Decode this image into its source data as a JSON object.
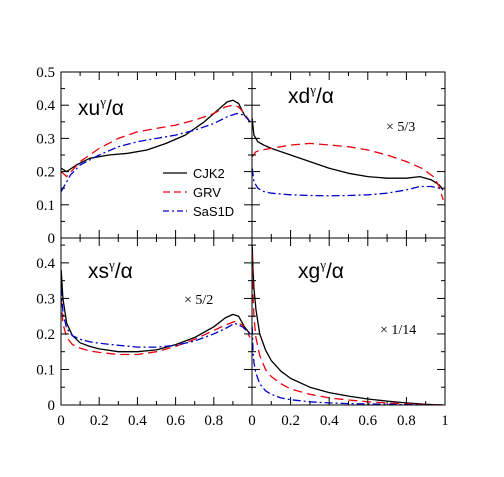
{
  "chart_data": {
    "type": "line",
    "x_axis": {
      "range": [
        0,
        1
      ],
      "ticks": [
        "0",
        "0.2",
        "0.4",
        "0.6",
        "0.8",
        "1"
      ]
    },
    "legend": {
      "placement": "inside top-left panel, lower-middle",
      "entries": [
        {
          "name": "CJK2",
          "color": "#000000",
          "dash": "solid"
        },
        {
          "name": "GRV",
          "color": "#e8000b",
          "dash": "dashed"
        },
        {
          "name": "SaS1D",
          "color": "#0000cc",
          "dash": "dash-dot"
        }
      ]
    },
    "panels": [
      {
        "id": "xu",
        "label": {
          "main": "xu",
          "sup": "γ",
          "tail": "/α"
        },
        "scale_note": "",
        "ylim": [
          0,
          0.5
        ],
        "y_ticks": [
          "0",
          "0.1",
          "0.2",
          "0.3",
          "0.4",
          "0.5"
        ],
        "series": [
          {
            "name": "CJK2",
            "x": [
              0.001,
              0.03,
              0.08,
              0.15,
              0.25,
              0.35,
              0.45,
              0.55,
              0.65,
              0.75,
              0.82,
              0.87,
              0.9,
              0.93,
              0.96,
              0.99
            ],
            "y": [
              0.21,
              0.2,
              0.22,
              0.24,
              0.25,
              0.255,
              0.265,
              0.285,
              0.31,
              0.35,
              0.385,
              0.41,
              0.415,
              0.405,
              0.37,
              0.35
            ]
          },
          {
            "name": "GRV",
            "x": [
              0.001,
              0.03,
              0.1,
              0.2,
              0.3,
              0.4,
              0.5,
              0.6,
              0.7,
              0.8,
              0.86,
              0.9,
              0.93,
              0.96,
              0.99
            ],
            "y": [
              0.2,
              0.185,
              0.23,
              0.27,
              0.3,
              0.32,
              0.33,
              0.34,
              0.355,
              0.375,
              0.395,
              0.4,
              0.395,
              0.375,
              0.35
            ]
          },
          {
            "name": "SaS1D",
            "x": [
              0.001,
              0.05,
              0.1,
              0.2,
              0.3,
              0.4,
              0.5,
              0.6,
              0.7,
              0.8,
              0.87,
              0.92,
              0.96,
              0.99
            ],
            "y": [
              0.14,
              0.19,
              0.22,
              0.25,
              0.275,
              0.29,
              0.3,
              0.31,
              0.325,
              0.345,
              0.365,
              0.375,
              0.37,
              0.35
            ]
          }
        ]
      },
      {
        "id": "xd",
        "label": {
          "main": "xd",
          "sup": "γ",
          "tail": "/α"
        },
        "scale_note": "× 5/3",
        "ylim": [
          0,
          0.5
        ],
        "y_ticks": [],
        "series": [
          {
            "name": "CJK2",
            "x": [
              0.001,
              0.01,
              0.03,
              0.06,
              0.1,
              0.2,
              0.3,
              0.4,
              0.5,
              0.6,
              0.7,
              0.8,
              0.87,
              0.93,
              0.97,
              0.99
            ],
            "y": [
              0.36,
              0.31,
              0.29,
              0.28,
              0.27,
              0.25,
              0.23,
              0.21,
              0.195,
              0.185,
              0.18,
              0.18,
              0.185,
              0.175,
              0.16,
              0.145
            ]
          },
          {
            "name": "GRV",
            "x": [
              0.001,
              0.02,
              0.05,
              0.1,
              0.2,
              0.3,
              0.4,
              0.5,
              0.6,
              0.7,
              0.8,
              0.88,
              0.94,
              0.97,
              0.99
            ],
            "y": [
              0.245,
              0.26,
              0.265,
              0.27,
              0.28,
              0.285,
              0.28,
              0.275,
              0.265,
              0.25,
              0.23,
              0.21,
              0.185,
              0.155,
              0.115
            ]
          },
          {
            "name": "SaS1D",
            "x": [
              0.001,
              0.01,
              0.03,
              0.06,
              0.1,
              0.2,
              0.3,
              0.4,
              0.5,
              0.6,
              0.7,
              0.8,
              0.87,
              0.93,
              0.97,
              0.99
            ],
            "y": [
              0.21,
              0.17,
              0.15,
              0.14,
              0.135,
              0.13,
              0.128,
              0.127,
              0.128,
              0.13,
              0.135,
              0.145,
              0.155,
              0.155,
              0.15,
              0.145
            ]
          }
        ]
      },
      {
        "id": "xs",
        "label": {
          "main": "xs",
          "sup": "γ",
          "tail": "/α"
        },
        "scale_note": "× 5/2",
        "ylim": [
          0,
          0.47
        ],
        "y_ticks": [
          "0",
          "0.1",
          "0.2",
          "0.3",
          "0.4"
        ],
        "series": [
          {
            "name": "CJK2",
            "x": [
              0.001,
              0.01,
              0.03,
              0.06,
              0.1,
              0.15,
              0.2,
              0.3,
              0.4,
              0.5,
              0.6,
              0.7,
              0.8,
              0.86,
              0.9,
              0.93,
              0.96,
              0.99
            ],
            "y": [
              0.38,
              0.3,
              0.23,
              0.195,
              0.175,
              0.165,
              0.158,
              0.15,
              0.15,
              0.155,
              0.17,
              0.19,
              0.22,
              0.245,
              0.255,
              0.25,
              0.22,
              0.2
            ]
          },
          {
            "name": "GRV",
            "x": [
              0.001,
              0.01,
              0.03,
              0.06,
              0.1,
              0.15,
              0.2,
              0.3,
              0.4,
              0.5,
              0.6,
              0.7,
              0.8,
              0.86,
              0.91,
              0.95,
              0.99
            ],
            "y": [
              0.3,
              0.23,
              0.19,
              0.17,
              0.16,
              0.152,
              0.148,
              0.142,
              0.142,
              0.15,
              0.165,
              0.185,
              0.21,
              0.225,
              0.235,
              0.225,
              0.19
            ]
          },
          {
            "name": "SaS1D",
            "x": [
              0.001,
              0.01,
              0.03,
              0.06,
              0.1,
              0.15,
              0.2,
              0.3,
              0.4,
              0.5,
              0.6,
              0.7,
              0.8,
              0.86,
              0.91,
              0.95,
              0.99
            ],
            "y": [
              0.33,
              0.26,
              0.215,
              0.195,
              0.185,
              0.178,
              0.174,
              0.168,
              0.163,
              0.163,
              0.168,
              0.18,
              0.2,
              0.215,
              0.23,
              0.22,
              0.2
            ]
          }
        ]
      },
      {
        "id": "xg",
        "label": {
          "main": "xg",
          "sup": "γ",
          "tail": "/α"
        },
        "scale_note": "× 1/14",
        "ylim": [
          0,
          0.47
        ],
        "y_ticks": [],
        "series": [
          {
            "name": "CJK2",
            "x": [
              0.001,
              0.005,
              0.01,
              0.02,
              0.04,
              0.07,
              0.1,
              0.15,
              0.2,
              0.3,
              0.4,
              0.5,
              0.6,
              0.7,
              0.8,
              0.9,
              0.99
            ],
            "y": [
              0.45,
              0.38,
              0.33,
              0.27,
              0.2,
              0.155,
              0.125,
              0.095,
              0.075,
              0.05,
              0.035,
              0.025,
              0.017,
              0.011,
              0.006,
              0.002,
              0.0
            ]
          },
          {
            "name": "GRV",
            "x": [
              0.001,
              0.005,
              0.01,
              0.02,
              0.04,
              0.07,
              0.1,
              0.15,
              0.2,
              0.3,
              0.4,
              0.5,
              0.6,
              0.7,
              0.8,
              0.9,
              0.99
            ],
            "y": [
              0.43,
              0.31,
              0.25,
              0.19,
              0.14,
              0.1,
              0.08,
              0.06,
              0.045,
              0.03,
              0.02,
              0.014,
              0.009,
              0.006,
              0.003,
              0.001,
              0.0
            ]
          },
          {
            "name": "SaS1D",
            "x": [
              0.001,
              0.005,
              0.01,
              0.02,
              0.04,
              0.07,
              0.1,
              0.15,
              0.2,
              0.3,
              0.4,
              0.5,
              0.6,
              0.7,
              0.8,
              0.9,
              0.99
            ],
            "y": [
              0.22,
              0.15,
              0.12,
              0.09,
              0.06,
              0.04,
              0.03,
              0.02,
              0.015,
              0.009,
              0.006,
              0.004,
              0.003,
              0.002,
              0.001,
              0.0,
              0.0
            ]
          }
        ]
      }
    ]
  }
}
